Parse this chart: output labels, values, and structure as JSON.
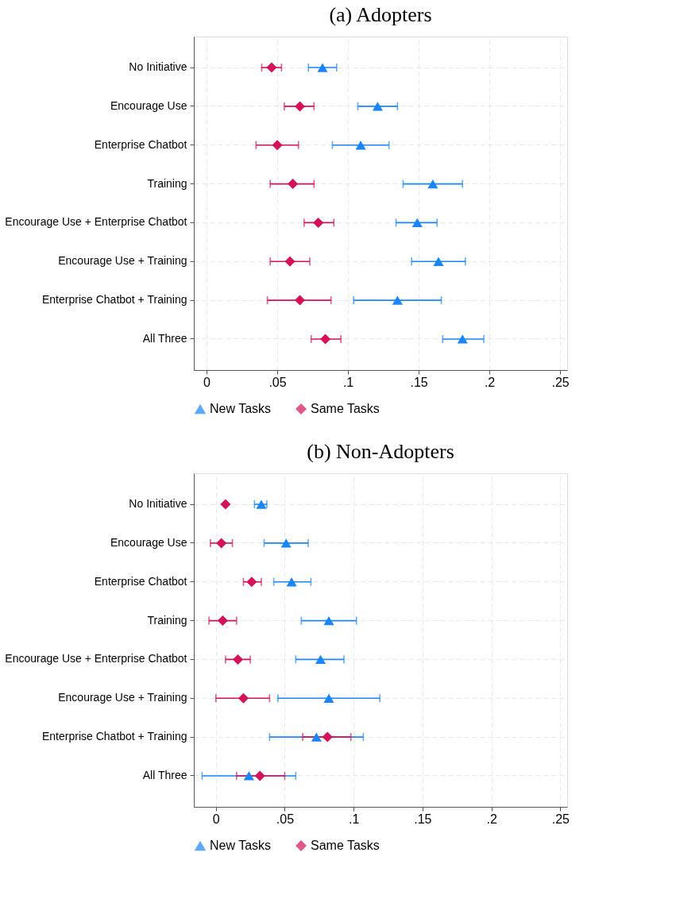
{
  "chart_data": [
    {
      "type": "scatter",
      "title": "(a) Adopters",
      "categories": [
        "No Initiative",
        "Encourage Use",
        "Enterprise Chatbot",
        "Training",
        "Encourage Use + Enterprise Chatbot",
        "Encourage Use + Training",
        "Enterprise Chatbot + Training",
        "All Three"
      ],
      "orientation": "horizontal",
      "xlim": [
        -0.009,
        0.255
      ],
      "xticks": [
        0,
        {
          "value": 0.05,
          "label": ".05"
        },
        {
          "value": 0.1,
          "label": ".1"
        },
        {
          "value": 0.15,
          "label": ".15"
        },
        {
          "value": 0.2,
          "label": ".2"
        },
        {
          "value": 0.25,
          "label": ".25"
        }
      ],
      "grid": true,
      "legend": "bottom",
      "series": [
        {
          "name": "New Tasks",
          "color": "#1a85ff",
          "marker": "triangle",
          "values": [
            0.082,
            0.121,
            0.109,
            0.16,
            0.149,
            0.164,
            0.135,
            0.181
          ],
          "errors": [
            [
              0.072,
              0.092
            ],
            [
              0.107,
              0.135
            ],
            [
              0.089,
              0.129
            ],
            [
              0.139,
              0.181
            ],
            [
              0.134,
              0.163
            ],
            [
              0.145,
              0.183
            ],
            [
              0.104,
              0.166
            ],
            [
              0.167,
              0.196
            ]
          ]
        },
        {
          "name": "Same Tasks",
          "color": "#d41159",
          "marker": "diamond",
          "values": [
            0.046,
            0.066,
            0.05,
            0.061,
            0.079,
            0.059,
            0.066,
            0.084
          ],
          "errors": [
            [
              0.039,
              0.053
            ],
            [
              0.055,
              0.076
            ],
            [
              0.035,
              0.065
            ],
            [
              0.045,
              0.076
            ],
            [
              0.069,
              0.09
            ],
            [
              0.045,
              0.073
            ],
            [
              0.043,
              0.088
            ],
            [
              0.074,
              0.095
            ]
          ]
        }
      ]
    },
    {
      "type": "scatter",
      "title": "(b) Non-Adopters",
      "categories": [
        "No Initiative",
        "Encourage Use",
        "Enterprise Chatbot",
        "Training",
        "Encourage Use + Enterprise Chatbot",
        "Encourage Use + Training",
        "Enterprise Chatbot + Training",
        "All Three"
      ],
      "orientation": "horizontal",
      "xlim": [
        -0.016,
        0.255
      ],
      "xticks": [
        0,
        {
          "value": 0.05,
          "label": ".05"
        },
        {
          "value": 0.1,
          "label": ".1"
        },
        {
          "value": 0.15,
          "label": ".15"
        },
        {
          "value": 0.2,
          "label": ".2"
        },
        {
          "value": 0.25,
          "label": ".25"
        }
      ],
      "grid": true,
      "legend": "bottom",
      "series": [
        {
          "name": "New Tasks",
          "color": "#1a85ff",
          "marker": "triangle",
          "values": [
            0.033,
            0.051,
            0.055,
            0.082,
            0.076,
            0.082,
            0.073,
            0.024
          ],
          "errors": [
            [
              0.028,
              0.037
            ],
            [
              0.035,
              0.067
            ],
            [
              0.042,
              0.069
            ],
            [
              0.062,
              0.102
            ],
            [
              0.058,
              0.093
            ],
            [
              0.045,
              0.119
            ],
            [
              0.039,
              0.107
            ],
            [
              -0.01,
              0.058
            ]
          ]
        },
        {
          "name": "Same Tasks",
          "color": "#d41159",
          "marker": "diamond",
          "values": [
            0.007,
            0.004,
            0.026,
            0.005,
            0.016,
            0.02,
            0.081,
            0.032
          ],
          "errors": [
            null,
            [
              -0.004,
              0.012
            ],
            [
              0.02,
              0.033
            ],
            [
              -0.005,
              0.015
            ],
            [
              0.007,
              0.025
            ],
            [
              0.0,
              0.039
            ],
            [
              0.063,
              0.098
            ],
            [
              0.015,
              0.05
            ]
          ]
        }
      ]
    }
  ]
}
